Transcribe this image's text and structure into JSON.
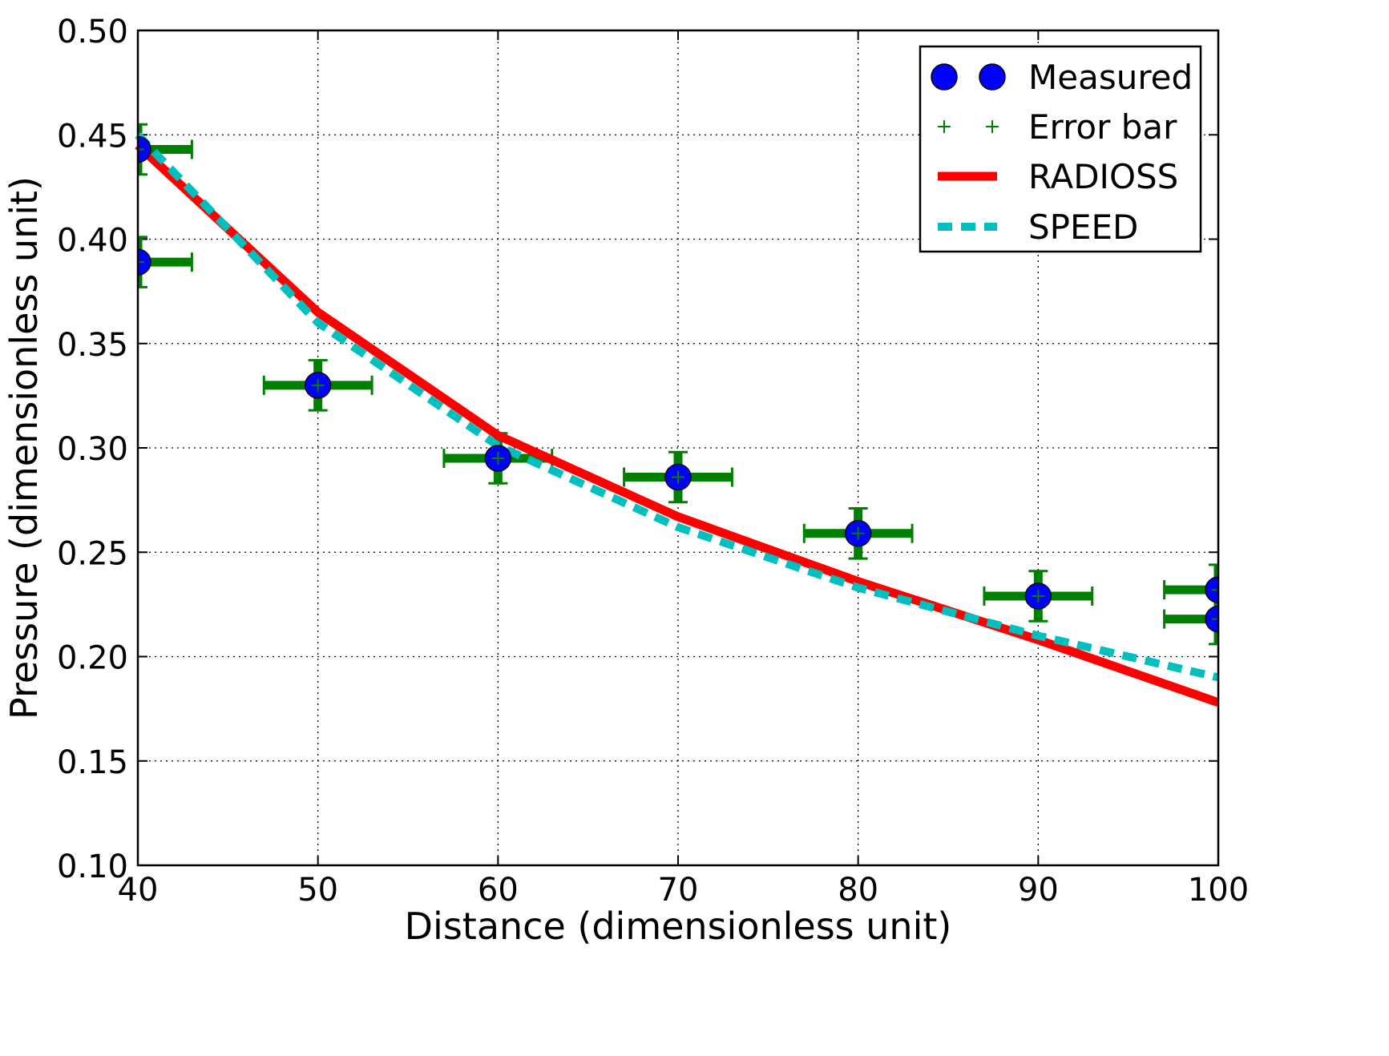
{
  "chart_data": {
    "type": "line",
    "title": "",
    "xlabel": "Distance (dimensionless unit)",
    "ylabel": "Pressure (dimensionless unit)",
    "xlim": [
      40,
      100
    ],
    "ylim": [
      0.1,
      0.5
    ],
    "grid": true,
    "legend_position": "top-right",
    "x_ticks": [
      40,
      50,
      60,
      70,
      80,
      90,
      100
    ],
    "x_tick_labels": [
      "40",
      "50",
      "60",
      "70",
      "80",
      "90",
      "100"
    ],
    "y_ticks": [
      0.1,
      0.15,
      0.2,
      0.25,
      0.3,
      0.35,
      0.4,
      0.45,
      0.5
    ],
    "y_tick_labels": [
      "0.10",
      "0.15",
      "0.20",
      "0.25",
      "0.30",
      "0.35",
      "0.40",
      "0.45",
      "0.50"
    ],
    "measured": {
      "name": "Measured",
      "color": "#0000ff",
      "points": [
        {
          "x": 40,
          "y": 0.443,
          "xerr": 3.0,
          "yerr": 0.012
        },
        {
          "x": 40,
          "y": 0.389,
          "xerr": 3.0,
          "yerr": 0.012
        },
        {
          "x": 50,
          "y": 0.33,
          "xerr": 3.0,
          "yerr": 0.012
        },
        {
          "x": 60,
          "y": 0.295,
          "xerr": 3.0,
          "yerr": 0.012
        },
        {
          "x": 70,
          "y": 0.286,
          "xerr": 3.0,
          "yerr": 0.012
        },
        {
          "x": 80,
          "y": 0.259,
          "xerr": 3.0,
          "yerr": 0.012
        },
        {
          "x": 90,
          "y": 0.229,
          "xerr": 3.0,
          "yerr": 0.012
        },
        {
          "x": 100,
          "y": 0.232,
          "xerr": 3.0,
          "yerr": 0.012
        },
        {
          "x": 100,
          "y": 0.218,
          "xerr": 3.0,
          "yerr": 0.012
        }
      ]
    },
    "error_bar": {
      "name": "Error bar",
      "color": "#007f00"
    },
    "series": [
      {
        "name": "RADIOSS",
        "color": "#ff0000",
        "style": "solid",
        "x": [
          40,
          50,
          60,
          70,
          80,
          90,
          100
        ],
        "y": [
          0.445,
          0.365,
          0.306,
          0.267,
          0.236,
          0.208,
          0.178
        ]
      },
      {
        "name": "SPEED",
        "color": "#00bfbf",
        "style": "dashed",
        "x": [
          40,
          50,
          60,
          70,
          80,
          90,
          100
        ],
        "y": [
          0.45,
          0.36,
          0.301,
          0.262,
          0.233,
          0.21,
          0.19
        ]
      }
    ],
    "legend": [
      "Measured",
      "Error bar",
      "RADIOSS",
      "SPEED"
    ]
  }
}
